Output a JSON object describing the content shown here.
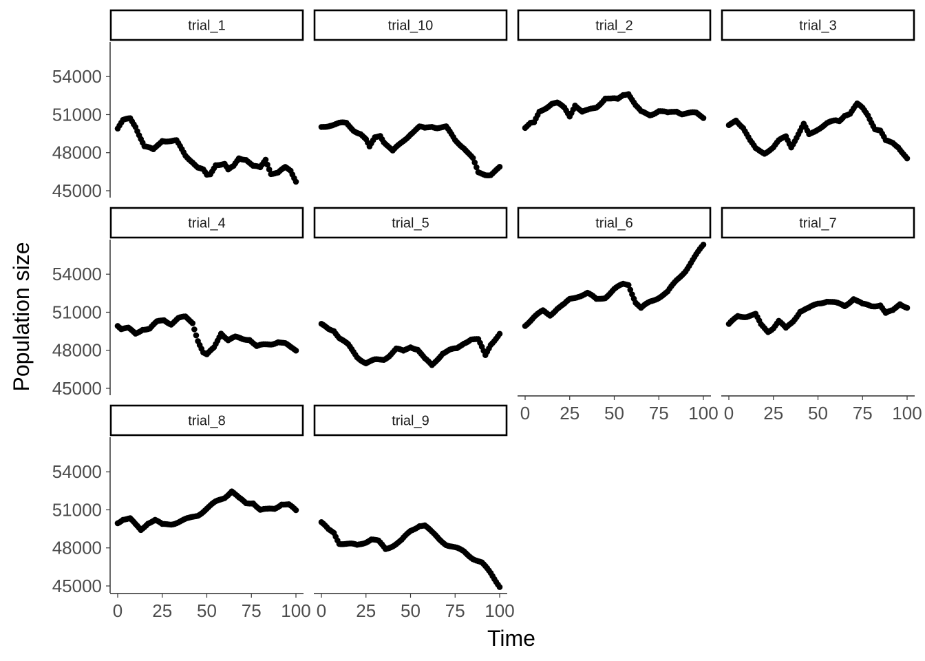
{
  "chart_data": {
    "type": "scatter",
    "layout": "facet_wrap",
    "facet_ncol": 4,
    "xlabel": "Time",
    "ylabel": "Population size",
    "xlim": [
      0,
      100
    ],
    "ylim": [
      45000,
      56400
    ],
    "x_ticks": [
      0,
      25,
      50,
      75,
      100
    ],
    "x_tick_labels": [
      "0",
      "25",
      "50",
      "75",
      "100"
    ],
    "y_ticks": [
      45000,
      48000,
      51000,
      54000
    ],
    "y_tick_labels": [
      "45000",
      "48000",
      "51000",
      "54000"
    ],
    "grid": false,
    "point_color": "#000000",
    "x_step": 1,
    "x_start": 0,
    "series": [
      {
        "name": "trial_1",
        "anchors": [
          [
            0,
            49900
          ],
          [
            3,
            50500
          ],
          [
            7,
            50700
          ],
          [
            10,
            50100
          ],
          [
            15,
            48500
          ],
          [
            20,
            48200
          ],
          [
            25,
            49000
          ],
          [
            30,
            48900
          ],
          [
            33,
            48900
          ],
          [
            38,
            47800
          ],
          [
            42,
            47300
          ],
          [
            45,
            46800
          ],
          [
            48,
            46600
          ],
          [
            50,
            46200
          ],
          [
            52,
            46300
          ],
          [
            55,
            47100
          ],
          [
            60,
            47100
          ],
          [
            62,
            46600
          ],
          [
            65,
            46900
          ],
          [
            68,
            47600
          ],
          [
            72,
            47500
          ],
          [
            76,
            46900
          ],
          [
            80,
            46800
          ],
          [
            83,
            47500
          ],
          [
            86,
            46400
          ],
          [
            90,
            46400
          ],
          [
            94,
            46800
          ],
          [
            97,
            46600
          ],
          [
            100,
            45800
          ]
        ]
      },
      {
        "name": "trial_10",
        "anchors": [
          [
            0,
            50000
          ],
          [
            5,
            50200
          ],
          [
            10,
            50300
          ],
          [
            14,
            50300
          ],
          [
            18,
            49800
          ],
          [
            22,
            49500
          ],
          [
            25,
            49000
          ],
          [
            27,
            48400
          ],
          [
            30,
            49200
          ],
          [
            33,
            49400
          ],
          [
            35,
            48900
          ],
          [
            40,
            48100
          ],
          [
            45,
            48800
          ],
          [
            50,
            49500
          ],
          [
            55,
            50000
          ],
          [
            58,
            49900
          ],
          [
            62,
            50100
          ],
          [
            65,
            50000
          ],
          [
            70,
            50000
          ],
          [
            75,
            49000
          ],
          [
            80,
            48400
          ],
          [
            85,
            47500
          ],
          [
            88,
            46400
          ],
          [
            92,
            46300
          ],
          [
            95,
            46300
          ],
          [
            100,
            46800
          ]
        ]
      },
      {
        "name": "trial_2",
        "anchors": [
          [
            0,
            50000
          ],
          [
            3,
            50300
          ],
          [
            5,
            50300
          ],
          [
            8,
            51200
          ],
          [
            12,
            51600
          ],
          [
            15,
            51900
          ],
          [
            18,
            51900
          ],
          [
            22,
            51500
          ],
          [
            25,
            50900
          ],
          [
            28,
            51800
          ],
          [
            32,
            51200
          ],
          [
            35,
            51300
          ],
          [
            40,
            51600
          ],
          [
            45,
            52300
          ],
          [
            48,
            52200
          ],
          [
            52,
            52200
          ],
          [
            55,
            52600
          ],
          [
            58,
            52700
          ],
          [
            62,
            51700
          ],
          [
            65,
            51200
          ],
          [
            70,
            51000
          ],
          [
            75,
            51300
          ],
          [
            80,
            51100
          ],
          [
            85,
            51300
          ],
          [
            88,
            51100
          ],
          [
            92,
            51100
          ],
          [
            96,
            51100
          ],
          [
            100,
            50800
          ]
        ]
      },
      {
        "name": "trial_3",
        "anchors": [
          [
            0,
            50100
          ],
          [
            4,
            50600
          ],
          [
            8,
            50000
          ],
          [
            12,
            48900
          ],
          [
            15,
            48300
          ],
          [
            20,
            48000
          ],
          [
            25,
            48400
          ],
          [
            28,
            48900
          ],
          [
            32,
            49300
          ],
          [
            35,
            48500
          ],
          [
            40,
            49700
          ],
          [
            42,
            50200
          ],
          [
            45,
            49400
          ],
          [
            50,
            49900
          ],
          [
            55,
            50300
          ],
          [
            60,
            50500
          ],
          [
            62,
            50500
          ],
          [
            65,
            51000
          ],
          [
            68,
            51100
          ],
          [
            72,
            51800
          ],
          [
            75,
            51500
          ],
          [
            78,
            51000
          ],
          [
            82,
            49900
          ],
          [
            85,
            49700
          ],
          [
            88,
            48900
          ],
          [
            92,
            48800
          ],
          [
            95,
            48500
          ],
          [
            100,
            47500
          ]
        ]
      },
      {
        "name": "trial_4",
        "anchors": [
          [
            0,
            50000
          ],
          [
            2,
            49700
          ],
          [
            6,
            49700
          ],
          [
            10,
            49300
          ],
          [
            14,
            49700
          ],
          [
            18,
            49700
          ],
          [
            22,
            50200
          ],
          [
            26,
            50400
          ],
          [
            30,
            50100
          ],
          [
            34,
            50500
          ],
          [
            38,
            50600
          ],
          [
            42,
            50200
          ],
          [
            45,
            48800
          ],
          [
            48,
            47800
          ],
          [
            50,
            47600
          ],
          [
            54,
            48200
          ],
          [
            58,
            49400
          ],
          [
            62,
            48800
          ],
          [
            66,
            49000
          ],
          [
            70,
            48900
          ],
          [
            74,
            48900
          ],
          [
            78,
            48300
          ],
          [
            82,
            48400
          ],
          [
            86,
            48500
          ],
          [
            90,
            48700
          ],
          [
            94,
            48500
          ],
          [
            97,
            48200
          ],
          [
            100,
            48000
          ]
        ]
      },
      {
        "name": "trial_5",
        "anchors": [
          [
            0,
            50000
          ],
          [
            4,
            49700
          ],
          [
            7,
            49600
          ],
          [
            10,
            49000
          ],
          [
            15,
            48400
          ],
          [
            20,
            47500
          ],
          [
            25,
            47000
          ],
          [
            30,
            47200
          ],
          [
            35,
            47300
          ],
          [
            38,
            47600
          ],
          [
            42,
            48100
          ],
          [
            46,
            47900
          ],
          [
            50,
            48300
          ],
          [
            54,
            48100
          ],
          [
            58,
            47300
          ],
          [
            62,
            46800
          ],
          [
            65,
            47300
          ],
          [
            68,
            47800
          ],
          [
            72,
            48000
          ],
          [
            76,
            48100
          ],
          [
            80,
            48600
          ],
          [
            84,
            48900
          ],
          [
            88,
            48800
          ],
          [
            92,
            47600
          ],
          [
            95,
            48500
          ],
          [
            100,
            49300
          ]
        ]
      },
      {
        "name": "trial_6",
        "anchors": [
          [
            0,
            50000
          ],
          [
            5,
            50600
          ],
          [
            10,
            51100
          ],
          [
            14,
            50800
          ],
          [
            18,
            51300
          ],
          [
            22,
            51600
          ],
          [
            25,
            52000
          ],
          [
            30,
            52300
          ],
          [
            35,
            52500
          ],
          [
            40,
            52000
          ],
          [
            45,
            52200
          ],
          [
            50,
            52800
          ],
          [
            55,
            53200
          ],
          [
            58,
            53200
          ],
          [
            62,
            51800
          ],
          [
            65,
            51300
          ],
          [
            70,
            51800
          ],
          [
            75,
            52200
          ],
          [
            80,
            52600
          ],
          [
            85,
            53500
          ],
          [
            90,
            54300
          ],
          [
            95,
            55300
          ],
          [
            100,
            56300
          ]
        ]
      },
      {
        "name": "trial_7",
        "anchors": [
          [
            0,
            50000
          ],
          [
            5,
            50700
          ],
          [
            10,
            50700
          ],
          [
            15,
            50800
          ],
          [
            18,
            50000
          ],
          [
            22,
            49500
          ],
          [
            25,
            49800
          ],
          [
            28,
            50300
          ],
          [
            32,
            49700
          ],
          [
            36,
            50300
          ],
          [
            40,
            51100
          ],
          [
            45,
            51300
          ],
          [
            50,
            51700
          ],
          [
            55,
            51900
          ],
          [
            60,
            51700
          ],
          [
            65,
            51500
          ],
          [
            70,
            52100
          ],
          [
            75,
            51600
          ],
          [
            80,
            51500
          ],
          [
            85,
            51600
          ],
          [
            88,
            50900
          ],
          [
            92,
            51100
          ],
          [
            96,
            51700
          ],
          [
            100,
            51400
          ]
        ]
      },
      {
        "name": "trial_8",
        "anchors": [
          [
            0,
            50000
          ],
          [
            3,
            50300
          ],
          [
            7,
            50300
          ],
          [
            10,
            49800
          ],
          [
            13,
            49400
          ],
          [
            17,
            50000
          ],
          [
            21,
            50200
          ],
          [
            25,
            49800
          ],
          [
            30,
            49900
          ],
          [
            35,
            50100
          ],
          [
            40,
            50300
          ],
          [
            45,
            50600
          ],
          [
            50,
            51100
          ],
          [
            55,
            51600
          ],
          [
            60,
            52000
          ],
          [
            64,
            52500
          ],
          [
            68,
            51900
          ],
          [
            72,
            51500
          ],
          [
            76,
            51600
          ],
          [
            80,
            51000
          ],
          [
            84,
            51000
          ],
          [
            88,
            51100
          ],
          [
            92,
            51500
          ],
          [
            96,
            51400
          ],
          [
            100,
            50900
          ]
        ]
      },
      {
        "name": "trial_9",
        "anchors": [
          [
            0,
            50000
          ],
          [
            4,
            49400
          ],
          [
            7,
            49200
          ],
          [
            10,
            48400
          ],
          [
            15,
            48300
          ],
          [
            20,
            48200
          ],
          [
            25,
            48500
          ],
          [
            28,
            48700
          ],
          [
            32,
            48500
          ],
          [
            36,
            47900
          ],
          [
            40,
            48200
          ],
          [
            45,
            48600
          ],
          [
            50,
            49300
          ],
          [
            55,
            49800
          ],
          [
            58,
            49800
          ],
          [
            62,
            49200
          ],
          [
            66,
            48700
          ],
          [
            70,
            48300
          ],
          [
            75,
            48000
          ],
          [
            80,
            47700
          ],
          [
            85,
            47200
          ],
          [
            90,
            46800
          ],
          [
            95,
            46000
          ],
          [
            100,
            45000
          ]
        ]
      }
    ]
  }
}
